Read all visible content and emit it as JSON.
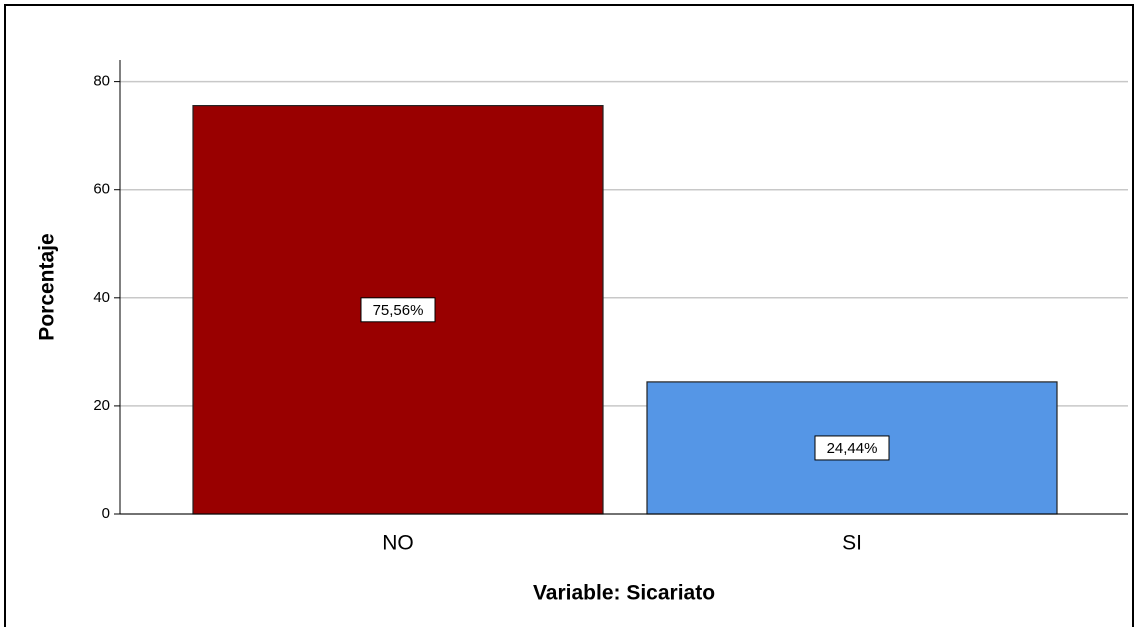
{
  "chart_data": {
    "type": "bar",
    "categories": [
      "NO",
      "SI"
    ],
    "values": [
      75.56,
      24.44
    ],
    "value_labels": [
      "75,56%",
      "24,44%"
    ],
    "colors": [
      "#990000",
      "#5596e6"
    ],
    "xlabel": "Variable: Sicariato",
    "ylabel": "Porcentaje",
    "ylim": [
      0,
      84
    ],
    "yticks": [
      0,
      20,
      40,
      60,
      80
    ],
    "grid": true
  }
}
